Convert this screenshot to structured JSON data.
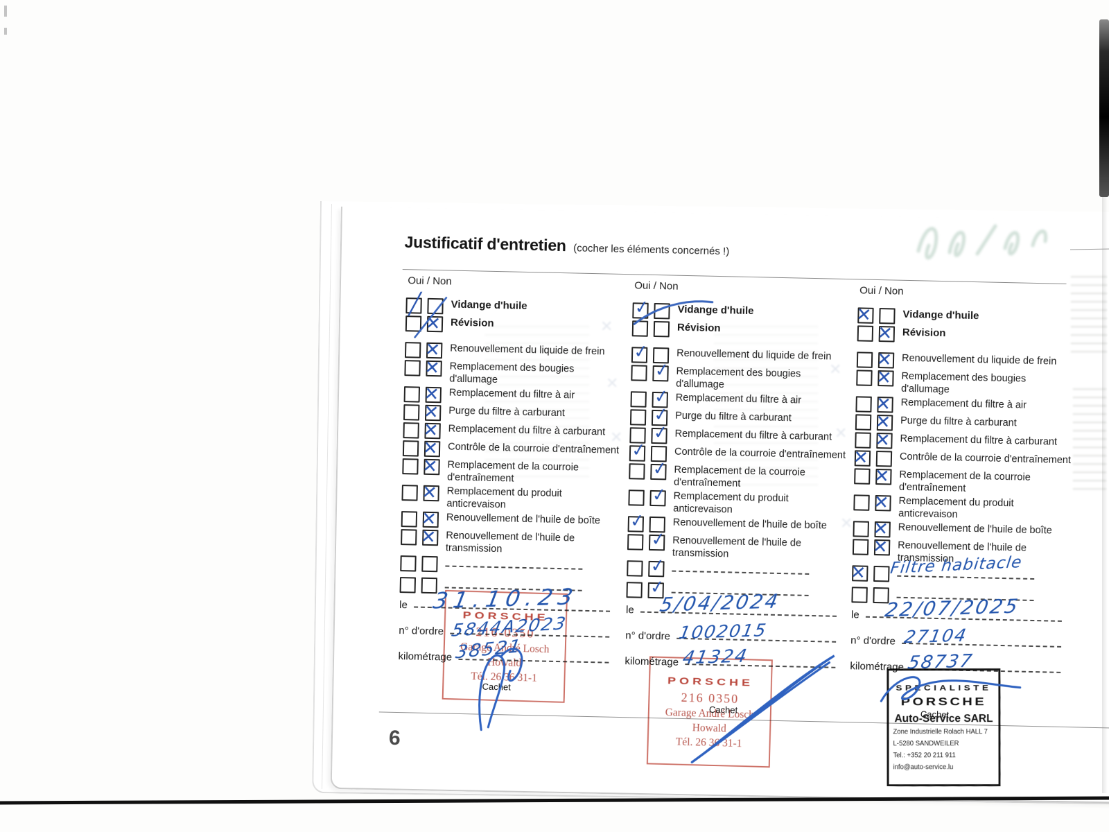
{
  "page": {
    "title": "Justificatif d'entretien",
    "subtitle": "(cocher les éléments concernés !)",
    "page_number": "6",
    "column_header": "Oui / Non",
    "cachet_label": "Cachet"
  },
  "field_labels": {
    "date": "le",
    "order": "n° d'ordre",
    "km": "kilométrage"
  },
  "items": [
    {
      "label": "Vidange d'huile",
      "bold": true
    },
    {
      "label": "Révision",
      "bold": true,
      "gap_after": true
    },
    {
      "label": "Renouvellement du liquide de frein"
    },
    {
      "label": "Remplacement des bougies d'allumage"
    },
    {
      "label": "Remplacement du filtre à air"
    },
    {
      "label": "Purge du filtre à carburant"
    },
    {
      "label": "Remplacement du filtre à carburant"
    },
    {
      "label": "Contrôle de la courroie d'entraînement"
    },
    {
      "label": "Remplacement de la courroie d'entraînement"
    },
    {
      "label": "Remplacement du produit anticrevaison"
    },
    {
      "label": "Renouvellement de l'huile de boîte"
    },
    {
      "label": "Renouvellement de l'huile de transmission"
    }
  ],
  "columns": [
    {
      "marks": [
        {
          "side": "oui",
          "style": "slash"
        },
        {
          "side": "non",
          "style": "x"
        },
        {
          "side": "non",
          "style": "x"
        },
        {
          "side": "non",
          "style": "x"
        },
        {
          "side": "non",
          "style": "x"
        },
        {
          "side": "non",
          "style": "x"
        },
        {
          "side": "non",
          "style": "x"
        },
        {
          "side": "non",
          "style": "x"
        },
        {
          "side": "non",
          "style": "x"
        },
        {
          "side": "non",
          "style": "x"
        },
        {
          "side": "non",
          "style": "x"
        },
        {
          "side": "non",
          "style": "x"
        },
        null,
        null
      ],
      "extra_note": "",
      "fields": {
        "date": "31.10.23",
        "order": "5844A2023",
        "km": "38521"
      },
      "stamp": {
        "type": "red",
        "lines": [
          "PORSCHE",
          "216-0350",
          "Garage André Losch",
          "Howald",
          "Tél. 26 36 31-1"
        ]
      }
    },
    {
      "marks": [
        {
          "side": "oui",
          "style": "check"
        },
        null,
        {
          "side": "oui",
          "style": "check"
        },
        {
          "side": "non",
          "style": "check"
        },
        {
          "side": "non",
          "style": "check"
        },
        {
          "side": "non",
          "style": "check"
        },
        {
          "side": "non",
          "style": "check"
        },
        {
          "side": "oui",
          "style": "check"
        },
        {
          "side": "non",
          "style": "check"
        },
        {
          "side": "non",
          "style": "check"
        },
        {
          "side": "oui",
          "style": "check"
        },
        {
          "side": "non",
          "style": "check"
        },
        {
          "side": "non",
          "style": "check"
        },
        {
          "side": "non",
          "style": "check"
        }
      ],
      "extra_note": "",
      "fields": {
        "date": "5/04/2024",
        "order": "1002015",
        "km": "41324"
      },
      "stamp": {
        "type": "red",
        "lines": [
          "PORSCHE",
          "216 0350",
          "Garage André Losch",
          "Howald",
          "Tél. 26 36 31-1"
        ]
      }
    },
    {
      "marks": [
        {
          "side": "oui",
          "style": "x"
        },
        {
          "side": "non",
          "style": "x"
        },
        {
          "side": "non",
          "style": "x"
        },
        {
          "side": "non",
          "style": "x"
        },
        {
          "side": "non",
          "style": "x"
        },
        {
          "side": "non",
          "style": "x"
        },
        {
          "side": "non",
          "style": "x"
        },
        {
          "side": "oui",
          "style": "x"
        },
        {
          "side": "non",
          "style": "x"
        },
        {
          "side": "non",
          "style": "x"
        },
        {
          "side": "non",
          "style": "x"
        },
        {
          "side": "non",
          "style": "x"
        },
        {
          "side": "oui",
          "style": "x"
        },
        null
      ],
      "extra_note": "Filtre habitacle",
      "fields": {
        "date": "22/07/2025",
        "order": "27104",
        "km": "58737"
      },
      "stamp": {
        "type": "black",
        "lines": [
          "SPECIALISTE",
          "PORSCHE",
          "Auto-Service SARL",
          "Zone Industrielle Rolach HALL 7",
          "L-5280 SANDWEILER",
          "Tel.: +352 20 211 911",
          "info@auto-service.lu"
        ]
      }
    }
  ]
}
